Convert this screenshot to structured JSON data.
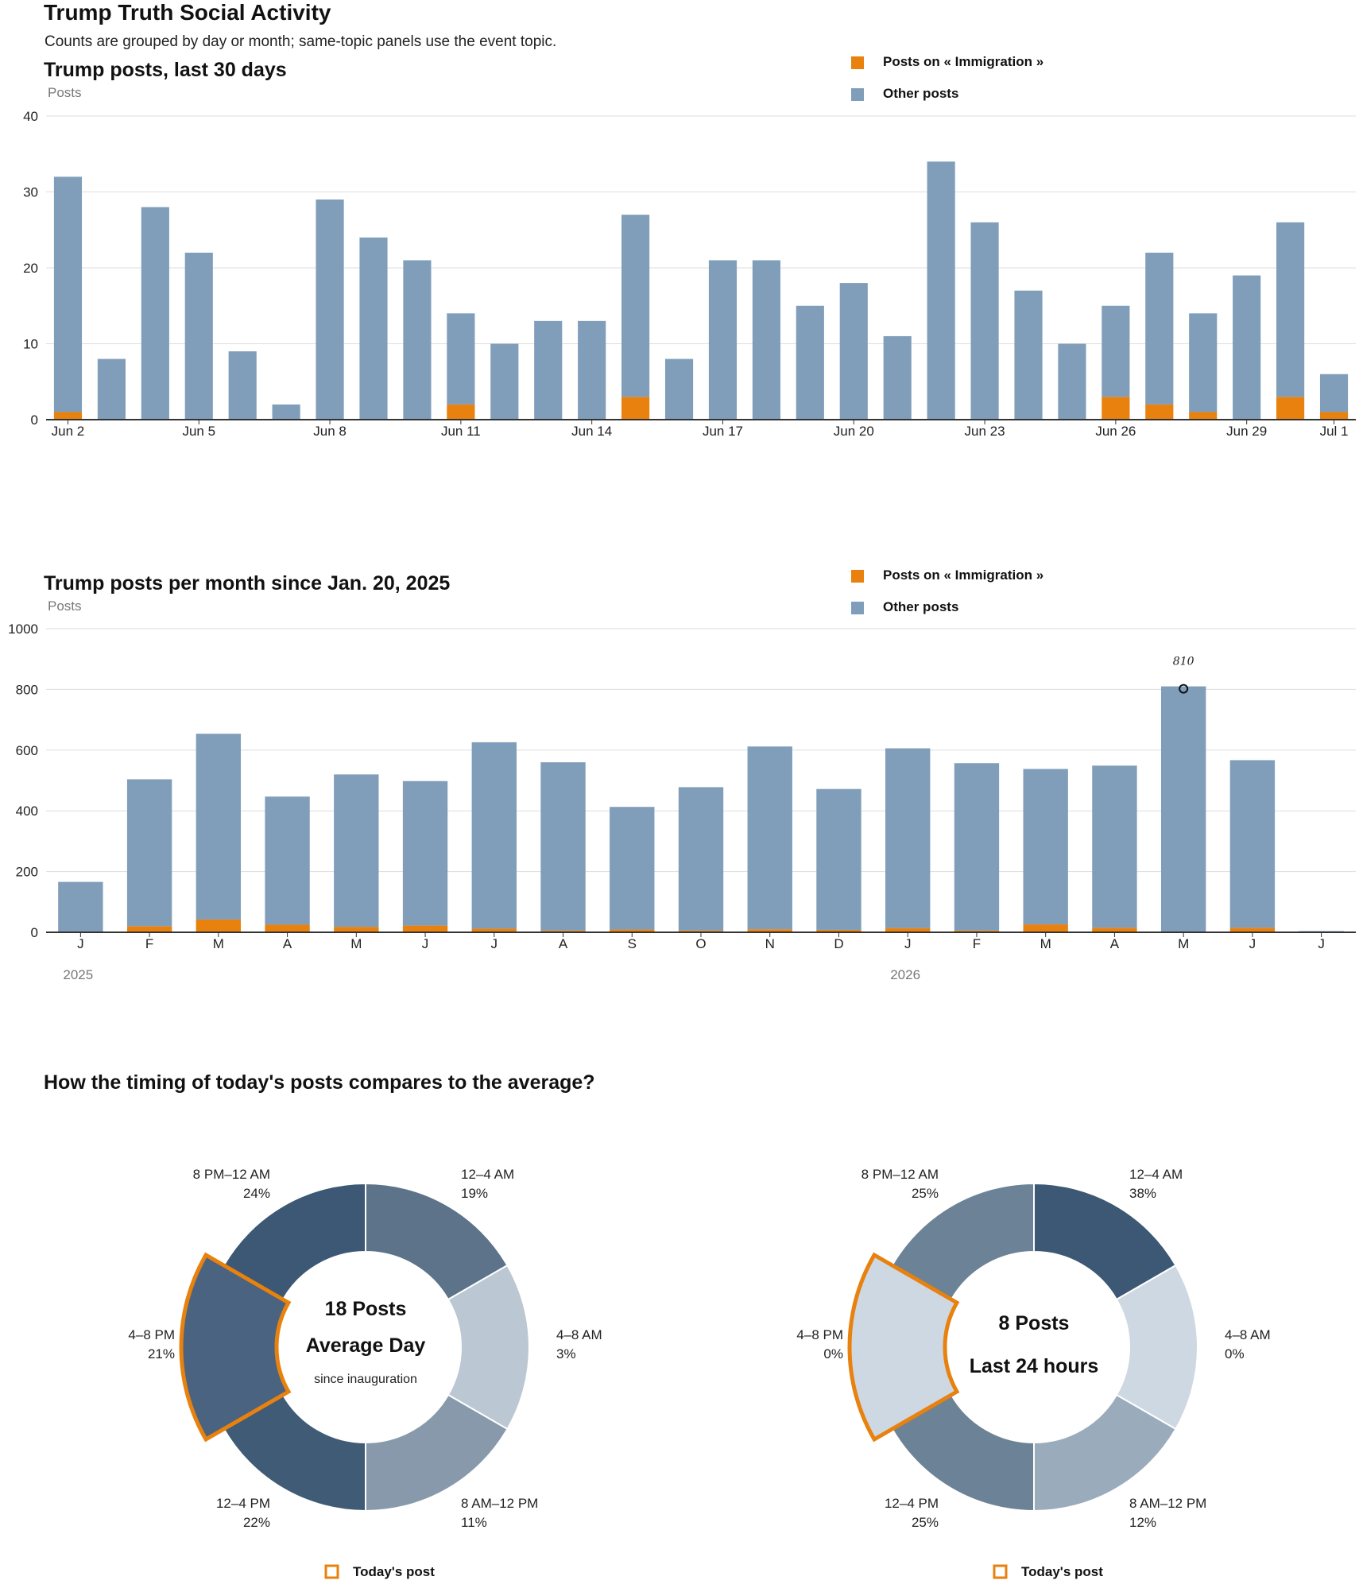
{
  "header": {
    "title": "Trump Truth Social Activity",
    "subtitle": "Counts are grouped by day or month; same-topic panels use the event topic."
  },
  "colors": {
    "topic": "#e8810e",
    "other": "#809eba",
    "axis": "#333333",
    "grid": "#dddddd",
    "highlight": "#e8810e"
  },
  "legend": {
    "topic_label": "Posts on « Immigration »",
    "other_label": "Other posts"
  },
  "chart_data": [
    {
      "id": "daily",
      "type": "bar",
      "stacked": true,
      "title": "Trump posts, last 30 days",
      "ylabel": "Posts",
      "ylim": [
        0,
        40
      ],
      "yticks": [
        0,
        10,
        20,
        30,
        40
      ],
      "grid": true,
      "legend_position": "top-right",
      "x_dates": [
        "Jun 2",
        "Jun 3",
        "Jun 4",
        "Jun 5",
        "Jun 6",
        "Jun 7",
        "Jun 8",
        "Jun 9",
        "Jun 10",
        "Jun 11",
        "Jun 12",
        "Jun 13",
        "Jun 14",
        "Jun 15",
        "Jun 16",
        "Jun 17",
        "Jun 18",
        "Jun 19",
        "Jun 20",
        "Jun 21",
        "Jun 22",
        "Jun 23",
        "Jun 24",
        "Jun 25",
        "Jun 26",
        "Jun 27",
        "Jun 28",
        "Jun 29",
        "Jun 30",
        "Jul 1"
      ],
      "tick_labels": [
        {
          "x": "Jun 2",
          "label": "Jun 2"
        },
        {
          "x": "Jun 5",
          "label": "Jun 5"
        },
        {
          "x": "Jun 8",
          "label": "Jun 8"
        },
        {
          "x": "Jun 11",
          "label": "Jun 11"
        },
        {
          "x": "Jun 14",
          "label": "Jun 14"
        },
        {
          "x": "Jun 17",
          "label": "Jun 17"
        },
        {
          "x": "Jun 20",
          "label": "Jun 20"
        },
        {
          "x": "Jun 23",
          "label": "Jun 23"
        },
        {
          "x": "Jun 26",
          "label": "Jun 26"
        },
        {
          "x": "Jun 29",
          "label": "Jun 29"
        },
        {
          "x": "Jul 1",
          "label": "Jul 1"
        }
      ],
      "series": [
        {
          "name": "Posts on « Immigration »",
          "values": [
            1,
            0,
            0,
            0,
            0,
            0,
            0,
            0,
            0,
            2,
            0,
            0,
            0,
            3,
            0,
            0,
            0,
            0,
            0,
            0,
            0,
            0,
            0,
            0,
            3,
            2,
            1,
            0,
            3,
            1
          ]
        },
        {
          "name": "Other posts",
          "values": [
            31,
            8,
            28,
            22,
            9,
            2,
            29,
            24,
            21,
            12,
            10,
            13,
            13,
            24,
            8,
            21,
            21,
            15,
            18,
            11,
            34,
            26,
            17,
            10,
            12,
            20,
            13,
            19,
            23,
            5
          ]
        }
      ]
    },
    {
      "id": "monthly",
      "type": "bar",
      "stacked": true,
      "title": "Trump posts per month since Jan. 20, 2025",
      "ylabel": "Posts",
      "ylim": [
        0,
        1000
      ],
      "yticks": [
        0,
        200,
        400,
        600,
        800,
        1000
      ],
      "grid": true,
      "legend_position": "top-right",
      "x_months": [
        "2025-01",
        "2025-02",
        "2025-03",
        "2025-04",
        "2025-05",
        "2025-06",
        "2025-07",
        "2025-08",
        "2025-09",
        "2025-10",
        "2025-11",
        "2025-12",
        "2026-01",
        "2026-02",
        "2026-03",
        "2026-04",
        "2026-05",
        "2026-06",
        "2026-07"
      ],
      "categories": [
        "J",
        "F",
        "M",
        "A",
        "M",
        "J",
        "J",
        "A",
        "S",
        "O",
        "N",
        "D",
        "J",
        "F",
        "M",
        "A",
        "M",
        "J",
        "J"
      ],
      "year_labels": [
        {
          "x": "2025-01",
          "label": "2025"
        },
        {
          "x": "2026-01",
          "label": "2026"
        }
      ],
      "annotation": {
        "x": "2026-05",
        "value": 810,
        "label": "810"
      },
      "series": [
        {
          "name": "Posts on « Immigration »",
          "values": [
            1,
            20,
            42,
            25,
            18,
            22,
            12,
            6,
            9,
            6,
            10,
            8,
            14,
            6,
            26,
            15,
            2,
            15,
            0
          ]
        },
        {
          "name": "Other posts",
          "values": [
            165,
            484,
            612,
            422,
            502,
            476,
            614,
            554,
            404,
            472,
            602,
            464,
            592,
            551,
            512,
            534,
            808,
            552,
            4
          ]
        }
      ]
    },
    {
      "id": "timing-section",
      "title": "How the timing of today's posts compares to the average?"
    },
    {
      "id": "donut-average",
      "type": "pie",
      "donut": true,
      "center_lines": [
        "18 Posts",
        "Average Day"
      ],
      "center_sub": "since inauguration",
      "highlight_slice": "4–8 PM",
      "legend_label": "Today's post",
      "slices": [
        {
          "label": "12–4 AM",
          "percent": "19%",
          "weight": 1,
          "color": "#5d7389"
        },
        {
          "label": "4–8 AM",
          "percent": "3%",
          "weight": 1,
          "color": "#bbc7d3"
        },
        {
          "label": "8 AM–12 PM",
          "percent": "11%",
          "weight": 1,
          "color": "#8799ab"
        },
        {
          "label": "12–4 PM",
          "percent": "22%",
          "weight": 1,
          "color": "#405b76"
        },
        {
          "label": "4–8 PM",
          "percent": "21%",
          "weight": 1,
          "color": "#4a6380"
        },
        {
          "label": "8 PM–12 AM",
          "percent": "24%",
          "weight": 1,
          "color": "#3d5874"
        }
      ]
    },
    {
      "id": "donut-today",
      "type": "pie",
      "donut": true,
      "center_lines": [
        "8 Posts",
        "Last 24 hours"
      ],
      "center_sub": "",
      "highlight_slice": "4–8 PM",
      "legend_label": "Today's post",
      "slices": [
        {
          "label": "12–4 AM",
          "percent": "38%",
          "weight": 1,
          "color": "#3d5874"
        },
        {
          "label": "4–8 AM",
          "percent": "0%",
          "weight": 1,
          "color": "#ced8e2"
        },
        {
          "label": "8 AM–12 PM",
          "percent": "12%",
          "weight": 1,
          "color": "#9aabbc"
        },
        {
          "label": "12–4 PM",
          "percent": "25%",
          "weight": 1,
          "color": "#6c8296"
        },
        {
          "label": "4–8 PM",
          "percent": "0%",
          "weight": 1,
          "color": "#ced8e2"
        },
        {
          "label": "8 PM–12 AM",
          "percent": "25%",
          "weight": 1,
          "color": "#6c8296"
        }
      ]
    }
  ]
}
